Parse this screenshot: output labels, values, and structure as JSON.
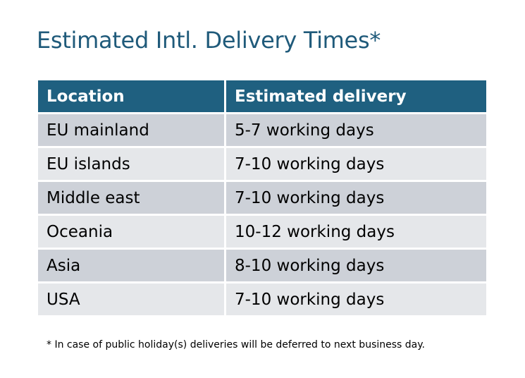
{
  "title": "Estimated Intl. Delivery Times*",
  "table": {
    "headers": [
      "Location",
      "Estimated delivery"
    ],
    "rows": [
      [
        "EU mainland",
        "5-7 working days"
      ],
      [
        "EU islands",
        "7-10 working days"
      ],
      [
        "Middle east",
        "7-10 working days"
      ],
      [
        "Oceania",
        "10-12 working days"
      ],
      [
        "Asia",
        "8-10 working days"
      ],
      [
        "USA",
        "7-10 working days"
      ]
    ]
  },
  "footnote": "* In case of public holiday(s) deliveries will be deferred to next business day.",
  "colors": {
    "title": "#1F5A7A",
    "header_bg": "#1F6080",
    "row_odd": "#CDD1D8",
    "row_even": "#E5E7EA"
  }
}
